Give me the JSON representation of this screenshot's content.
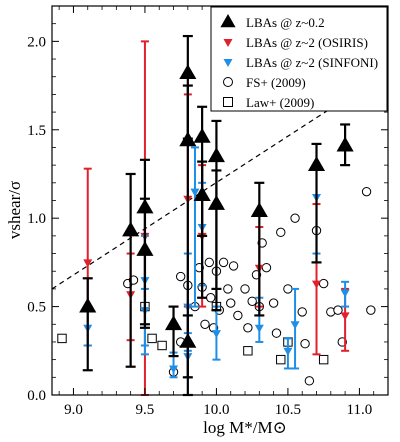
{
  "chart_data": {
    "type": "scatter",
    "xlabel": "log M*/M⊙",
    "ylabel": "vshear/σ",
    "xlim": [
      8.85,
      11.2
    ],
    "ylim": [
      0.0,
      2.2
    ],
    "xticks": [
      "9.0",
      "9.5",
      "10.0",
      "10.5",
      "11.0"
    ],
    "yticks": [
      "0.0",
      "0.5",
      "1.0",
      "1.5",
      "2.0"
    ],
    "legend_position": "top-right",
    "reference_line": {
      "style": "dashed",
      "points": [
        [
          8.85,
          0.6
        ],
        [
          11.2,
          1.83
        ]
      ]
    },
    "series": [
      {
        "name": "LBAs @ z~0.2",
        "marker": "triangle-up",
        "color": "#000000",
        "points": [
          {
            "x": 9.1,
            "y": 0.5,
            "ylo": 0.14,
            "yhi": 0.66
          },
          {
            "x": 9.4,
            "y": 0.93,
            "ylo": 0.16,
            "yhi": 1.25
          },
          {
            "x": 9.5,
            "y": 1.06,
            "ylo": 0.4,
            "yhi": 1.33
          },
          {
            "x": 9.5,
            "y": 0.82,
            "ylo": 0.38,
            "yhi": 1.11
          },
          {
            "x": 9.7,
            "y": 0.4,
            "ylo": 0.22,
            "yhi": 0.5
          },
          {
            "x": 9.8,
            "y": 1.82,
            "ylo": 1.45,
            "yhi": 2.03
          },
          {
            "x": 9.8,
            "y": 1.44,
            "ylo": 0.1,
            "yhi": 1.75
          },
          {
            "x": 9.8,
            "y": 0.3,
            "ylo": 0.0,
            "yhi": 0.45
          },
          {
            "x": 9.9,
            "y": 1.46,
            "ylo": 0.9,
            "yhi": 1.63
          },
          {
            "x": 9.9,
            "y": 1.13,
            "ylo": 0.55,
            "yhi": 1.32
          },
          {
            "x": 10.0,
            "y": 1.35,
            "ylo": 0.6,
            "yhi": 1.55
          },
          {
            "x": 10.0,
            "y": 1.08,
            "ylo": 0.48,
            "yhi": 1.27
          },
          {
            "x": 10.3,
            "y": 1.04,
            "ylo": 0.45,
            "yhi": 1.2
          },
          {
            "x": 10.7,
            "y": 1.3,
            "ylo": 0.75,
            "yhi": 1.42
          },
          {
            "x": 10.9,
            "y": 1.41,
            "ylo": 1.3,
            "yhi": 1.53
          }
        ]
      },
      {
        "name": "LBAs @ z~2 (OSIRIS)",
        "marker": "triangle-down",
        "color": "#e0202a",
        "points": [
          {
            "x": 9.1,
            "y": 0.75,
            "ylo": 0.28,
            "yhi": 1.28
          },
          {
            "x": 9.4,
            "y": 0.57,
            "ylo": 0.31,
            "yhi": 0.8
          },
          {
            "x": 9.5,
            "y": 0.9,
            "ylo": 0.0,
            "yhi": 2.0
          },
          {
            "x": 9.8,
            "y": 1.11,
            "ylo": 0.5,
            "yhi": 1.7
          },
          {
            "x": 9.9,
            "y": 0.9,
            "ylo": 0.5,
            "yhi": 1.3
          },
          {
            "x": 10.3,
            "y": 0.72,
            "ylo": 0.5,
            "yhi": 0.95
          },
          {
            "x": 10.7,
            "y": 0.63,
            "ylo": 0.23,
            "yhi": 1.08
          },
          {
            "x": 10.9,
            "y": 0.45,
            "ylo": 0.25,
            "yhi": 0.6
          }
        ]
      },
      {
        "name": "LBAs @ z~2 (SINFONI)",
        "marker": "triangle-down",
        "color": "#1f8ee6",
        "points": [
          {
            "x": 9.1,
            "y": 0.38,
            "ylo": 0.28,
            "yhi": 0.5
          },
          {
            "x": 9.5,
            "y": 0.65,
            "ylo": 0.23,
            "yhi": 0.9
          },
          {
            "x": 9.5,
            "y": 0.48,
            "ylo": 0.28,
            "yhi": 0.6
          },
          {
            "x": 9.7,
            "y": 0.15,
            "ylo": 0.1,
            "yhi": 0.24
          },
          {
            "x": 9.8,
            "y": 0.5,
            "ylo": 0.25,
            "yhi": 0.8
          },
          {
            "x": 9.8,
            "y": 0.22,
            "ylo": 0.1,
            "yhi": 0.35
          },
          {
            "x": 9.85,
            "y": 1.15,
            "ylo": 0.5,
            "yhi": 1.4
          },
          {
            "x": 9.9,
            "y": 0.95,
            "ylo": 0.62,
            "yhi": 1.2
          },
          {
            "x": 10.0,
            "y": 0.35,
            "ylo": 0.2,
            "yhi": 0.5
          },
          {
            "x": 10.3,
            "y": 0.38,
            "ylo": 0.3,
            "yhi": 0.55
          },
          {
            "x": 10.55,
            "y": 0.4,
            "ylo": 0.15,
            "yhi": 0.6
          },
          {
            "x": 10.5,
            "y": 0.25,
            "ylo": 0.15,
            "yhi": 0.32
          },
          {
            "x": 10.7,
            "y": 1.12,
            "ylo": 0.8,
            "yhi": 1.28
          },
          {
            "x": 10.9,
            "y": 0.58,
            "ylo": 0.5,
            "yhi": 0.64
          }
        ]
      },
      {
        "name": "FS+ (2009)",
        "marker": "circle-open",
        "color": "#000000",
        "points": [
          {
            "x": 9.38,
            "y": 0.63
          },
          {
            "x": 9.42,
            "y": 0.65
          },
          {
            "x": 9.7,
            "y": 0.13
          },
          {
            "x": 9.75,
            "y": 0.67
          },
          {
            "x": 9.75,
            "y": 0.3
          },
          {
            "x": 9.8,
            "y": 0.62
          },
          {
            "x": 9.85,
            "y": 0.5
          },
          {
            "x": 9.88,
            "y": 0.72
          },
          {
            "x": 9.9,
            "y": 0.61
          },
          {
            "x": 9.92,
            "y": 0.4
          },
          {
            "x": 9.95,
            "y": 0.75
          },
          {
            "x": 9.96,
            "y": 0.55
          },
          {
            "x": 9.98,
            "y": 0.38
          },
          {
            "x": 10.0,
            "y": 0.7
          },
          {
            "x": 10.02,
            "y": 0.48
          },
          {
            "x": 10.05,
            "y": 0.75
          },
          {
            "x": 10.08,
            "y": 0.6
          },
          {
            "x": 10.1,
            "y": 0.52
          },
          {
            "x": 10.12,
            "y": 0.73
          },
          {
            "x": 10.15,
            "y": 0.45
          },
          {
            "x": 10.2,
            "y": 0.6
          },
          {
            "x": 10.22,
            "y": 0.38
          },
          {
            "x": 10.25,
            "y": 0.53
          },
          {
            "x": 10.28,
            "y": 0.68
          },
          {
            "x": 10.3,
            "y": 0.5
          },
          {
            "x": 10.32,
            "y": 0.86
          },
          {
            "x": 10.35,
            "y": 0.72
          },
          {
            "x": 10.4,
            "y": 0.52
          },
          {
            "x": 10.42,
            "y": 0.35
          },
          {
            "x": 10.45,
            "y": 0.92
          },
          {
            "x": 10.5,
            "y": 0.6
          },
          {
            "x": 10.55,
            "y": 1.0
          },
          {
            "x": 10.6,
            "y": 0.47
          },
          {
            "x": 10.62,
            "y": 0.29
          },
          {
            "x": 10.65,
            "y": 0.08
          },
          {
            "x": 10.7,
            "y": 0.93
          },
          {
            "x": 10.75,
            "y": 0.63
          },
          {
            "x": 10.8,
            "y": 0.47
          },
          {
            "x": 10.85,
            "y": 0.48
          },
          {
            "x": 10.88,
            "y": 0.3
          },
          {
            "x": 11.05,
            "y": 1.15
          },
          {
            "x": 11.08,
            "y": 0.48
          }
        ]
      },
      {
        "name": "Law+ (2009)",
        "marker": "square-open",
        "color": "#000000",
        "points": [
          {
            "x": 8.92,
            "y": 0.32
          },
          {
            "x": 9.5,
            "y": 0.5
          },
          {
            "x": 9.55,
            "y": 0.32
          },
          {
            "x": 9.62,
            "y": 0.28
          },
          {
            "x": 10.0,
            "y": 0.5
          },
          {
            "x": 10.22,
            "y": 0.25
          },
          {
            "x": 10.45,
            "y": 0.2
          },
          {
            "x": 10.5,
            "y": 0.3
          },
          {
            "x": 10.75,
            "y": 0.2
          }
        ]
      }
    ]
  }
}
